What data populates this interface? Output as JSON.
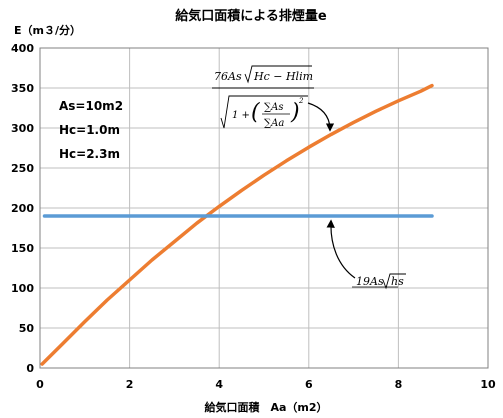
{
  "chart_data": {
    "type": "line",
    "title": "給気口面積による排煙量e",
    "ylabel": "E（m３/分）",
    "xlabel": "給気口面積　Aa（m2）",
    "xlim": [
      0,
      10
    ],
    "ylim": [
      0,
      400
    ],
    "x_ticks": [
      "0",
      "2",
      "4",
      "6",
      "8",
      "10"
    ],
    "y_ticks": [
      "0",
      "50",
      "100",
      "150",
      "200",
      "250",
      "300",
      "350",
      "400"
    ],
    "grid": true,
    "parameters": [
      "As=10m2",
      "Hc=1.0m",
      "Hc=2.3m"
    ],
    "series": [
      {
        "color": "#ED7D31",
        "formula": {
          "numerator_coeff": "76",
          "numerator_var": "As",
          "radicand": "Hc − Hlim",
          "denominator_one": "1 +",
          "sum_top": "∑As",
          "sum_bottom": "∑Aa",
          "exponent": "2"
        },
        "points": [
          [
            0.05,
            5
          ],
          [
            0.5,
            30
          ],
          [
            1.0,
            58
          ],
          [
            1.5,
            85
          ],
          [
            2.0,
            110
          ],
          [
            2.5,
            135
          ],
          [
            3.0,
            158
          ],
          [
            3.5,
            181
          ],
          [
            4.0,
            202
          ],
          [
            4.5,
            222
          ],
          [
            5.0,
            241
          ],
          [
            5.5,
            259
          ],
          [
            6.0,
            276
          ],
          [
            6.5,
            292
          ],
          [
            7.0,
            307
          ],
          [
            7.5,
            321
          ],
          [
            8.0,
            334
          ],
          [
            8.5,
            346
          ],
          [
            8.75,
            353
          ]
        ]
      },
      {
        "color": "#5B9BD5",
        "formula": {
          "coeff": "19",
          "var": "As",
          "radicand": "hs"
        },
        "points": [
          [
            0.1,
            190
          ],
          [
            8.75,
            190
          ]
        ]
      }
    ]
  }
}
